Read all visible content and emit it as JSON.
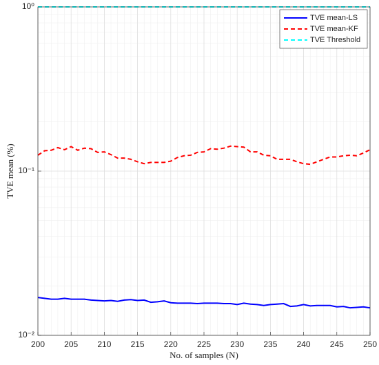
{
  "chart_data": {
    "type": "line",
    "x_label": "No. of samples (N)",
    "y_label": "TVE mean (%)",
    "x": [
      200,
      201,
      202,
      203,
      204,
      205,
      206,
      207,
      208,
      209,
      210,
      211,
      212,
      213,
      214,
      215,
      216,
      217,
      218,
      219,
      220,
      221,
      222,
      223,
      224,
      225,
      226,
      227,
      228,
      229,
      230,
      231,
      232,
      233,
      234,
      235,
      236,
      237,
      238,
      239,
      240,
      241,
      242,
      243,
      244,
      245,
      246,
      247,
      248,
      249,
      250
    ],
    "series": [
      {
        "name": "TVE mean-LS",
        "color": "#0000ff",
        "dash": "solid",
        "values": [
          0.017,
          0.0168,
          0.0166,
          0.0166,
          0.0168,
          0.0166,
          0.0166,
          0.0166,
          0.0164,
          0.0163,
          0.0162,
          0.0163,
          0.0161,
          0.0164,
          0.0165,
          0.0163,
          0.0164,
          0.0159,
          0.016,
          0.0162,
          0.0158,
          0.0157,
          0.0157,
          0.0157,
          0.0156,
          0.0157,
          0.0157,
          0.0157,
          0.0156,
          0.0156,
          0.0154,
          0.0157,
          0.0155,
          0.0154,
          0.0152,
          0.0154,
          0.0155,
          0.0156,
          0.015,
          0.0151,
          0.0154,
          0.0151,
          0.0152,
          0.0152,
          0.0152,
          0.0149,
          0.015,
          0.0147,
          0.0148,
          0.0149,
          0.0147
        ]
      },
      {
        "name": "TVE mean-KF",
        "color": "#ff0000",
        "dash": "dashed",
        "values": [
          0.125,
          0.133,
          0.134,
          0.139,
          0.135,
          0.141,
          0.134,
          0.138,
          0.137,
          0.13,
          0.131,
          0.126,
          0.12,
          0.12,
          0.118,
          0.114,
          0.111,
          0.113,
          0.113,
          0.113,
          0.115,
          0.121,
          0.124,
          0.125,
          0.13,
          0.131,
          0.137,
          0.136,
          0.138,
          0.142,
          0.141,
          0.14,
          0.131,
          0.131,
          0.125,
          0.124,
          0.118,
          0.118,
          0.118,
          0.114,
          0.111,
          0.11,
          0.114,
          0.118,
          0.122,
          0.122,
          0.124,
          0.125,
          0.124,
          0.129,
          0.135
        ]
      },
      {
        "name": "TVE Threshold",
        "color": "#00ffff",
        "dash": "dashed",
        "values": [
          1,
          1,
          1,
          1,
          1,
          1,
          1,
          1,
          1,
          1,
          1,
          1,
          1,
          1,
          1,
          1,
          1,
          1,
          1,
          1,
          1,
          1,
          1,
          1,
          1,
          1,
          1,
          1,
          1,
          1,
          1,
          1,
          1,
          1,
          1,
          1,
          1,
          1,
          1,
          1,
          1,
          1,
          1,
          1,
          1,
          1,
          1,
          1,
          1,
          1,
          1
        ]
      }
    ],
    "xlim": [
      200,
      250
    ],
    "xticks": [
      200,
      205,
      210,
      215,
      220,
      225,
      230,
      235,
      240,
      245,
      250
    ],
    "ylim": [
      0.01,
      1
    ],
    "yscale": "log",
    "yticks": [
      {
        "value": 0.01,
        "label": "10⁻²"
      },
      {
        "value": 0.1,
        "label": "10⁻¹"
      },
      {
        "value": 1,
        "label": "10⁰"
      }
    ],
    "grid": true,
    "minor_grid": true,
    "legend": "upper right"
  }
}
